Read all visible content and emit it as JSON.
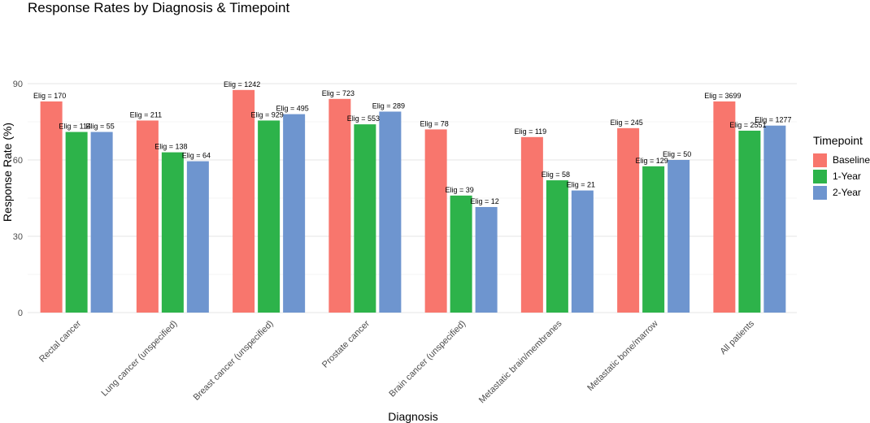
{
  "chart_data": {
    "type": "bar",
    "title": "Response Rates by Diagnosis & Timepoint",
    "xlabel": "Diagnosis",
    "ylabel": "Response Rate (%)",
    "ylim": [
      0,
      95
    ],
    "yticks": [
      0,
      30,
      60,
      90
    ],
    "grid": true,
    "legend_title": "Timepoint",
    "legend_position": "right",
    "categories": [
      "Rectal cancer",
      "Lung cancer (unspecified)",
      "Breast cancer (unspecified)",
      "Prostate cancer",
      "Brain cancer (unspecified)",
      "Metastatic brain/membranes",
      "Metastatic bone/marrow",
      "All patients"
    ],
    "series": [
      {
        "name": "Baseline",
        "color": "#F8766D",
        "values": [
          83,
          75.5,
          87.5,
          84,
          72,
          69,
          72.5,
          83
        ],
        "labels": [
          "Elig = 170",
          "Elig = 211",
          "Elig = 1242",
          "Elig = 723",
          "Elig = 78",
          "Elig = 119",
          "Elig = 245",
          "Elig = 3699"
        ]
      },
      {
        "name": "1-Year",
        "color": "#2DB34A",
        "values": [
          71,
          63,
          75.5,
          74,
          46,
          52,
          57.5,
          71.5
        ],
        "labels": [
          "Elig = 114",
          "Elig = 138",
          "Elig = 929",
          "Elig = 553",
          "Elig = 39",
          "Elig = 58",
          "Elig = 129",
          "Elig = 2551"
        ]
      },
      {
        "name": "2-Year",
        "color": "#6E95CF",
        "values": [
          71,
          59.5,
          78,
          79,
          41.5,
          48,
          60,
          73.5
        ],
        "labels": [
          "Elig = 55",
          "Elig = 64",
          "Elig = 495",
          "Elig = 289",
          "Elig = 12",
          "Elig = 21",
          "Elig = 50",
          "Elig = 1277"
        ]
      }
    ]
  }
}
